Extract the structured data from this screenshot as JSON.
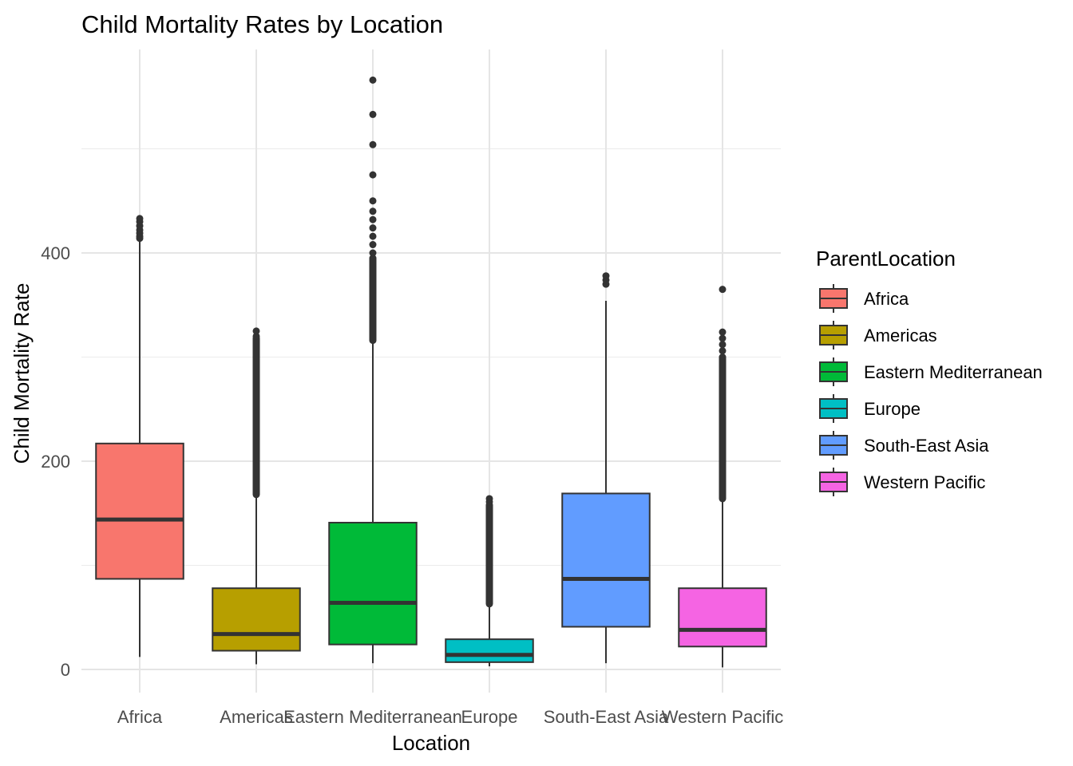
{
  "chart_data": {
    "type": "boxplot",
    "title": "Child Mortality Rates by Location",
    "xlabel": "Location",
    "ylabel": "Child Mortality Rate",
    "ylim": [
      -20,
      600
    ],
    "yticks": [
      0,
      200,
      400
    ],
    "grid": true,
    "legend_title": "ParentLocation",
    "legend_position": "right",
    "categories": [
      "Africa",
      "Americas",
      "Eastern Mediterranean",
      "Europe",
      "South-East Asia",
      "Western Pacific"
    ],
    "series": [
      {
        "name": "Africa",
        "color": "#F8766D",
        "whisker_low": 12,
        "q1": 87,
        "median": 144,
        "q3": 217,
        "whisker_high": 412,
        "outliers": [
          414,
          416,
          419,
          422,
          426,
          430,
          433
        ]
      },
      {
        "name": "Americas",
        "color": "#B79F00",
        "whisker_low": 5,
        "q1": 18,
        "median": 34,
        "q3": 78,
        "whisker_high": 167,
        "outliers_range": [
          168,
          318
        ],
        "outliers": [
          320,
          325
        ]
      },
      {
        "name": "Eastern Mediterranean",
        "color": "#00BA38",
        "whisker_low": 6,
        "q1": 24,
        "median": 64,
        "q3": 141,
        "whisker_high": 315,
        "outliers_range": [
          316,
          395
        ],
        "outliers": [
          400,
          408,
          416,
          424,
          432,
          440,
          450,
          475,
          504,
          533,
          566
        ]
      },
      {
        "name": "Europe",
        "color": "#00BFC4",
        "whisker_low": 3,
        "q1": 7,
        "median": 14,
        "q3": 29,
        "whisker_high": 62,
        "outliers_range": [
          63,
          158
        ],
        "outliers": [
          161,
          164
        ]
      },
      {
        "name": "South-East Asia",
        "color": "#619CFF",
        "whisker_low": 6,
        "q1": 41,
        "median": 87,
        "q3": 169,
        "whisker_high": 354,
        "outliers": [
          370,
          374,
          378
        ]
      },
      {
        "name": "Western Pacific",
        "color": "#F564E3",
        "whisker_low": 2,
        "q1": 22,
        "median": 38,
        "q3": 78,
        "whisker_high": 163,
        "outliers_range": [
          164,
          300
        ],
        "outliers": [
          306,
          312,
          318,
          324,
          365
        ]
      }
    ]
  }
}
